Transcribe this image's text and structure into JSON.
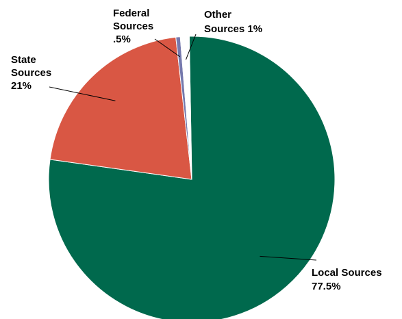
{
  "chart_data": {
    "type": "pie",
    "title": "",
    "slices": [
      {
        "name": "Local Sources",
        "label_lines": [
          "Local Sources",
          "77.5%"
        ],
        "value": 77.5,
        "color": "#00694d"
      },
      {
        "name": "State Sources",
        "label_lines": [
          "State",
          "Sources",
          "21%"
        ],
        "value": 21,
        "color": "#d95744"
      },
      {
        "name": "Federal Sources",
        "label_lines": [
          "Federal",
          "Sources",
          ".5%"
        ],
        "value": 0.5,
        "color": "#7579ad"
      },
      {
        "name": "Other Sources",
        "label_lines": [
          "Other",
          "Sources 1%"
        ],
        "value": 1,
        "color": "#ffffff"
      }
    ],
    "legend": "none",
    "labels": "outside with leader lines"
  }
}
